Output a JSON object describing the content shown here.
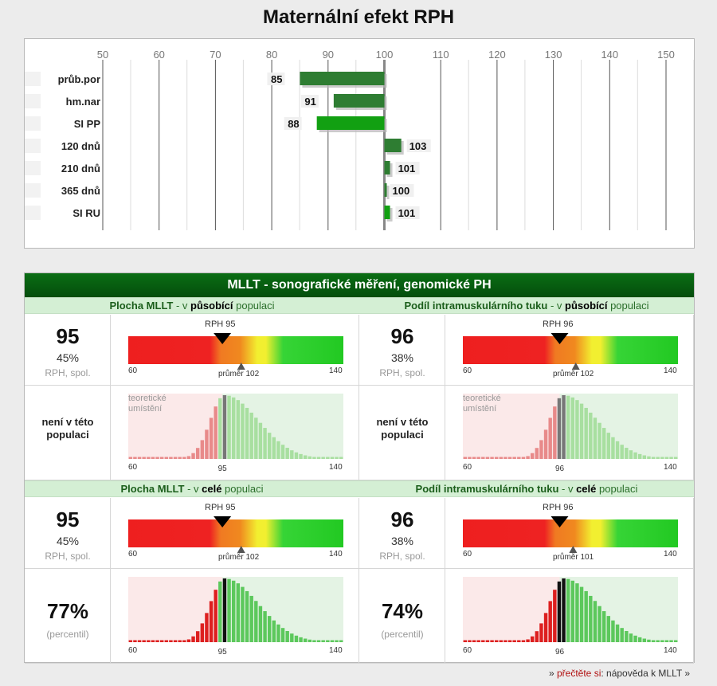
{
  "title": "Maternální efekt RPH",
  "bar_chart": {
    "axis_ticks": [
      "50",
      "60",
      "70",
      "80",
      "90",
      "100",
      "110",
      "120",
      "130",
      "140",
      "150"
    ],
    "rows": [
      {
        "label": "průb.por",
        "value": 85,
        "value_label": "85"
      },
      {
        "label": "hm.nar",
        "value": 91,
        "value_label": "91"
      },
      {
        "label": "SI PP",
        "value": 88,
        "value_label": "88"
      },
      {
        "label": "120 dnů",
        "value": 103,
        "value_label": "103"
      },
      {
        "label": "210 dnů",
        "value": 101,
        "value_label": "101"
      },
      {
        "label": "365 dnů",
        "value": 100,
        "value_label": "100"
      },
      {
        "label": "SI RU",
        "value": 101,
        "value_label": "101"
      }
    ]
  },
  "mllt": {
    "header": "MLLT - sonografické měření, genomické PH",
    "sections": [
      {
        "head_a": "Plocha MLLT",
        "head_b": " - v ",
        "head_c": "působící",
        "head_d": " populaci",
        "value": "95",
        "percent": "45%",
        "unit_label": "RPH, spol.",
        "rph_label": "RPH 95",
        "scale_min": "60",
        "scale_max": "140",
        "avg_label": "průměr 102",
        "left_note": "není v této populaci",
        "left_sub": "",
        "hist_note": "teoretické umístění",
        "hist_mid": "95",
        "hist_min": "60",
        "hist_max": "140"
      },
      {
        "head_a": "Podíl intramuskulárního tuku",
        "head_b": " - v ",
        "head_c": "působící",
        "head_d": " populaci",
        "value": "96",
        "percent": "38%",
        "unit_label": "RPH, spol.",
        "rph_label": "RPH 96",
        "scale_min": "60",
        "scale_max": "140",
        "avg_label": "průměr 102",
        "left_note": "není v této populaci",
        "left_sub": "",
        "hist_note": "teoretické umístění",
        "hist_mid": "96",
        "hist_min": "60",
        "hist_max": "140"
      },
      {
        "head_a": "Plocha MLLT",
        "head_b": " - v ",
        "head_c": "celé",
        "head_d": " populaci",
        "value": "95",
        "percent": "45%",
        "unit_label": "RPH, spol.",
        "rph_label": "RPH 95",
        "scale_min": "60",
        "scale_max": "140",
        "avg_label": "průměr 102",
        "left_note": "77%",
        "left_sub": "(percentil)",
        "hist_note": "",
        "hist_mid": "95",
        "hist_min": "60",
        "hist_max": "140"
      },
      {
        "head_a": "Podíl intramuskulárního tuku",
        "head_b": " - v ",
        "head_c": "celé",
        "head_d": " populaci",
        "value": "96",
        "percent": "38%",
        "unit_label": "RPH, spol.",
        "rph_label": "RPH 96",
        "scale_min": "60",
        "scale_max": "140",
        "avg_label": "průměr 101",
        "left_note": "74%",
        "left_sub": "(percentil)",
        "hist_note": "",
        "hist_mid": "96",
        "hist_min": "60",
        "hist_max": "140"
      }
    ],
    "rph_values": [
      95,
      96,
      95,
      96
    ],
    "avg_values": [
      102,
      102,
      102,
      101
    ]
  },
  "footer": {
    "prefix": "» ",
    "link_red": "přečtěte si",
    "link_rest": ": nápověda k MLLT",
    "suffix": " »"
  },
  "colors": {
    "bar_dark": "#2e7d32",
    "bar_bright": "#12a012",
    "header_green": "#0a6e14",
    "subhead_bg": "#d4efd4"
  }
}
